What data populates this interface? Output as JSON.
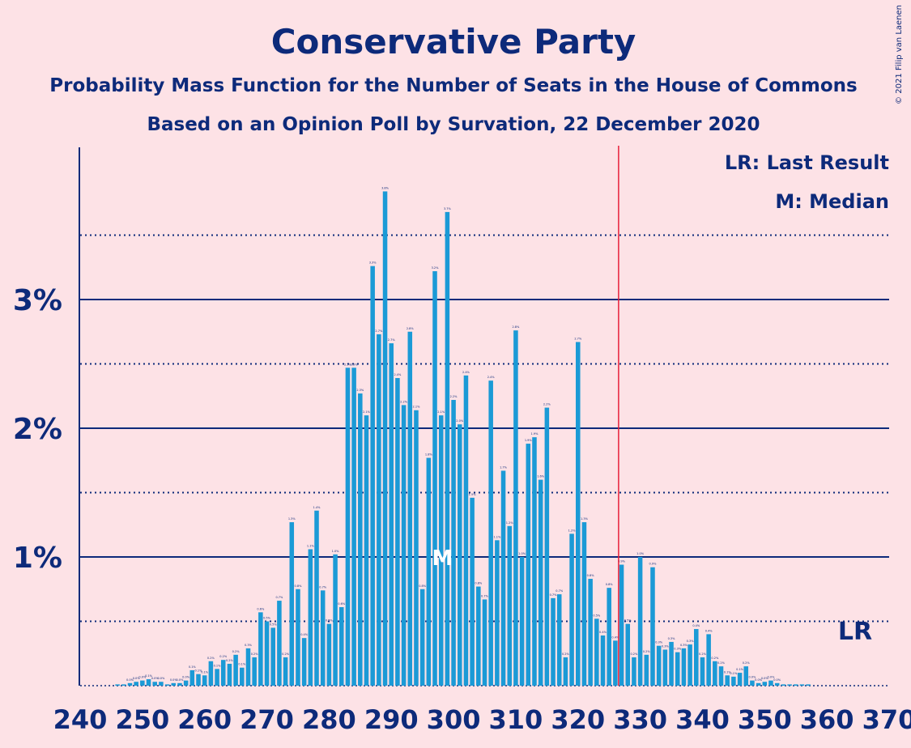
{
  "chart_data": {
    "type": "bar",
    "title": "Conservative Party",
    "subtitle": "Probability Mass Function for the Number of Seats in the House of Commons",
    "subtitle2": "Based on an Opinion Poll by Survation, 22 December 2020",
    "copyright": "© 2021 Filip van Laenen",
    "xlabel": "",
    "ylabel": "",
    "x_range": [
      240,
      370
    ],
    "ylim": [
      0,
      4.2
    ],
    "y_ticks": [
      {
        "value": 1,
        "label": "1%"
      },
      {
        "value": 2,
        "label": "2%"
      },
      {
        "value": 3,
        "label": "3%"
      }
    ],
    "y_minor_ticks": [
      0.5,
      1.5,
      2.5,
      3.5
    ],
    "x_ticks": [
      "240",
      "250",
      "260",
      "270",
      "280",
      "290",
      "300",
      "310",
      "320",
      "330",
      "340",
      "350",
      "360",
      "370"
    ],
    "grid": true,
    "legend": {
      "last_result": "LR: Last Result",
      "median": "M: Median"
    },
    "last_result": {
      "seat": 326,
      "label": "LR"
    },
    "median": {
      "seat": 299,
      "label": "M"
    },
    "color": "#1b9ad6",
    "marker_color": "#e8203a",
    "axis_color": "#0d2a7a",
    "seats": [
      240,
      241,
      242,
      243,
      244,
      245,
      246,
      247,
      248,
      249,
      250,
      251,
      252,
      253,
      254,
      255,
      256,
      257,
      258,
      259,
      260,
      261,
      262,
      263,
      264,
      265,
      266,
      267,
      268,
      269,
      270,
      271,
      272,
      273,
      274,
      275,
      276,
      277,
      278,
      279,
      280,
      281,
      282,
      283,
      284,
      285,
      286,
      287,
      288,
      289,
      290,
      291,
      292,
      293,
      294,
      295,
      296,
      297,
      298,
      299,
      300,
      301,
      302,
      303,
      304,
      305,
      306,
      307,
      308,
      309,
      310,
      311,
      312,
      313,
      314,
      315,
      316,
      317,
      318,
      319,
      320,
      321,
      322,
      323,
      324,
      325,
      326,
      327,
      328,
      329,
      330,
      331,
      332,
      333,
      334,
      335,
      336,
      337,
      338,
      339,
      340,
      341,
      342,
      343,
      344,
      345,
      346,
      347,
      348,
      349,
      350,
      351,
      352,
      353,
      354,
      355,
      356,
      357,
      358,
      359,
      360,
      361,
      362,
      363,
      364,
      365,
      366,
      367,
      368,
      369,
      370
    ],
    "values": [
      0,
      0,
      0,
      0,
      0,
      0,
      0.01,
      0.01,
      0.02,
      0.03,
      0.04,
      0.05,
      0.03,
      0.03,
      0.01,
      0.02,
      0.02,
      0.04,
      0.12,
      0.09,
      0.08,
      0.19,
      0.13,
      0.2,
      0.17,
      0.24,
      0.14,
      0.29,
      0.22,
      0.57,
      0.5,
      0.45,
      0.66,
      0.22,
      1.27,
      0.75,
      0.37,
      1.06,
      1.36,
      0.74,
      0.48,
      1.02,
      0.61,
      2.47,
      2.47,
      2.27,
      2.1,
      3.26,
      2.73,
      3.84,
      2.66,
      2.39,
      2.18,
      2.75,
      2.14,
      0.75,
      1.77,
      3.22,
      2.1,
      3.68,
      2.22,
      2.03,
      2.41,
      1.46,
      0.77,
      0.67,
      2.37,
      1.13,
      1.67,
      1.24,
      2.76,
      1,
      1.88,
      1.93,
      1.6,
      2.16,
      0.68,
      0.71,
      0.22,
      1.18,
      2.67,
      1.27,
      0.83,
      0.52,
      0.39,
      0.76,
      0.35,
      0.94,
      0.48,
      0.22,
      1,
      0.24,
      0.92,
      0.31,
      0.28,
      0.34,
      0.26,
      0.29,
      0.32,
      0.44,
      0.22,
      0.4,
      0.19,
      0.15,
      0.08,
      0.07,
      0.1,
      0.15,
      0.04,
      0.02,
      0.03,
      0.04,
      0.02,
      0.01,
      0.01,
      0.01,
      0.01,
      0.01,
      0,
      0,
      0,
      0,
      0,
      0,
      0,
      0,
      0,
      0,
      0,
      0,
      0
    ]
  }
}
